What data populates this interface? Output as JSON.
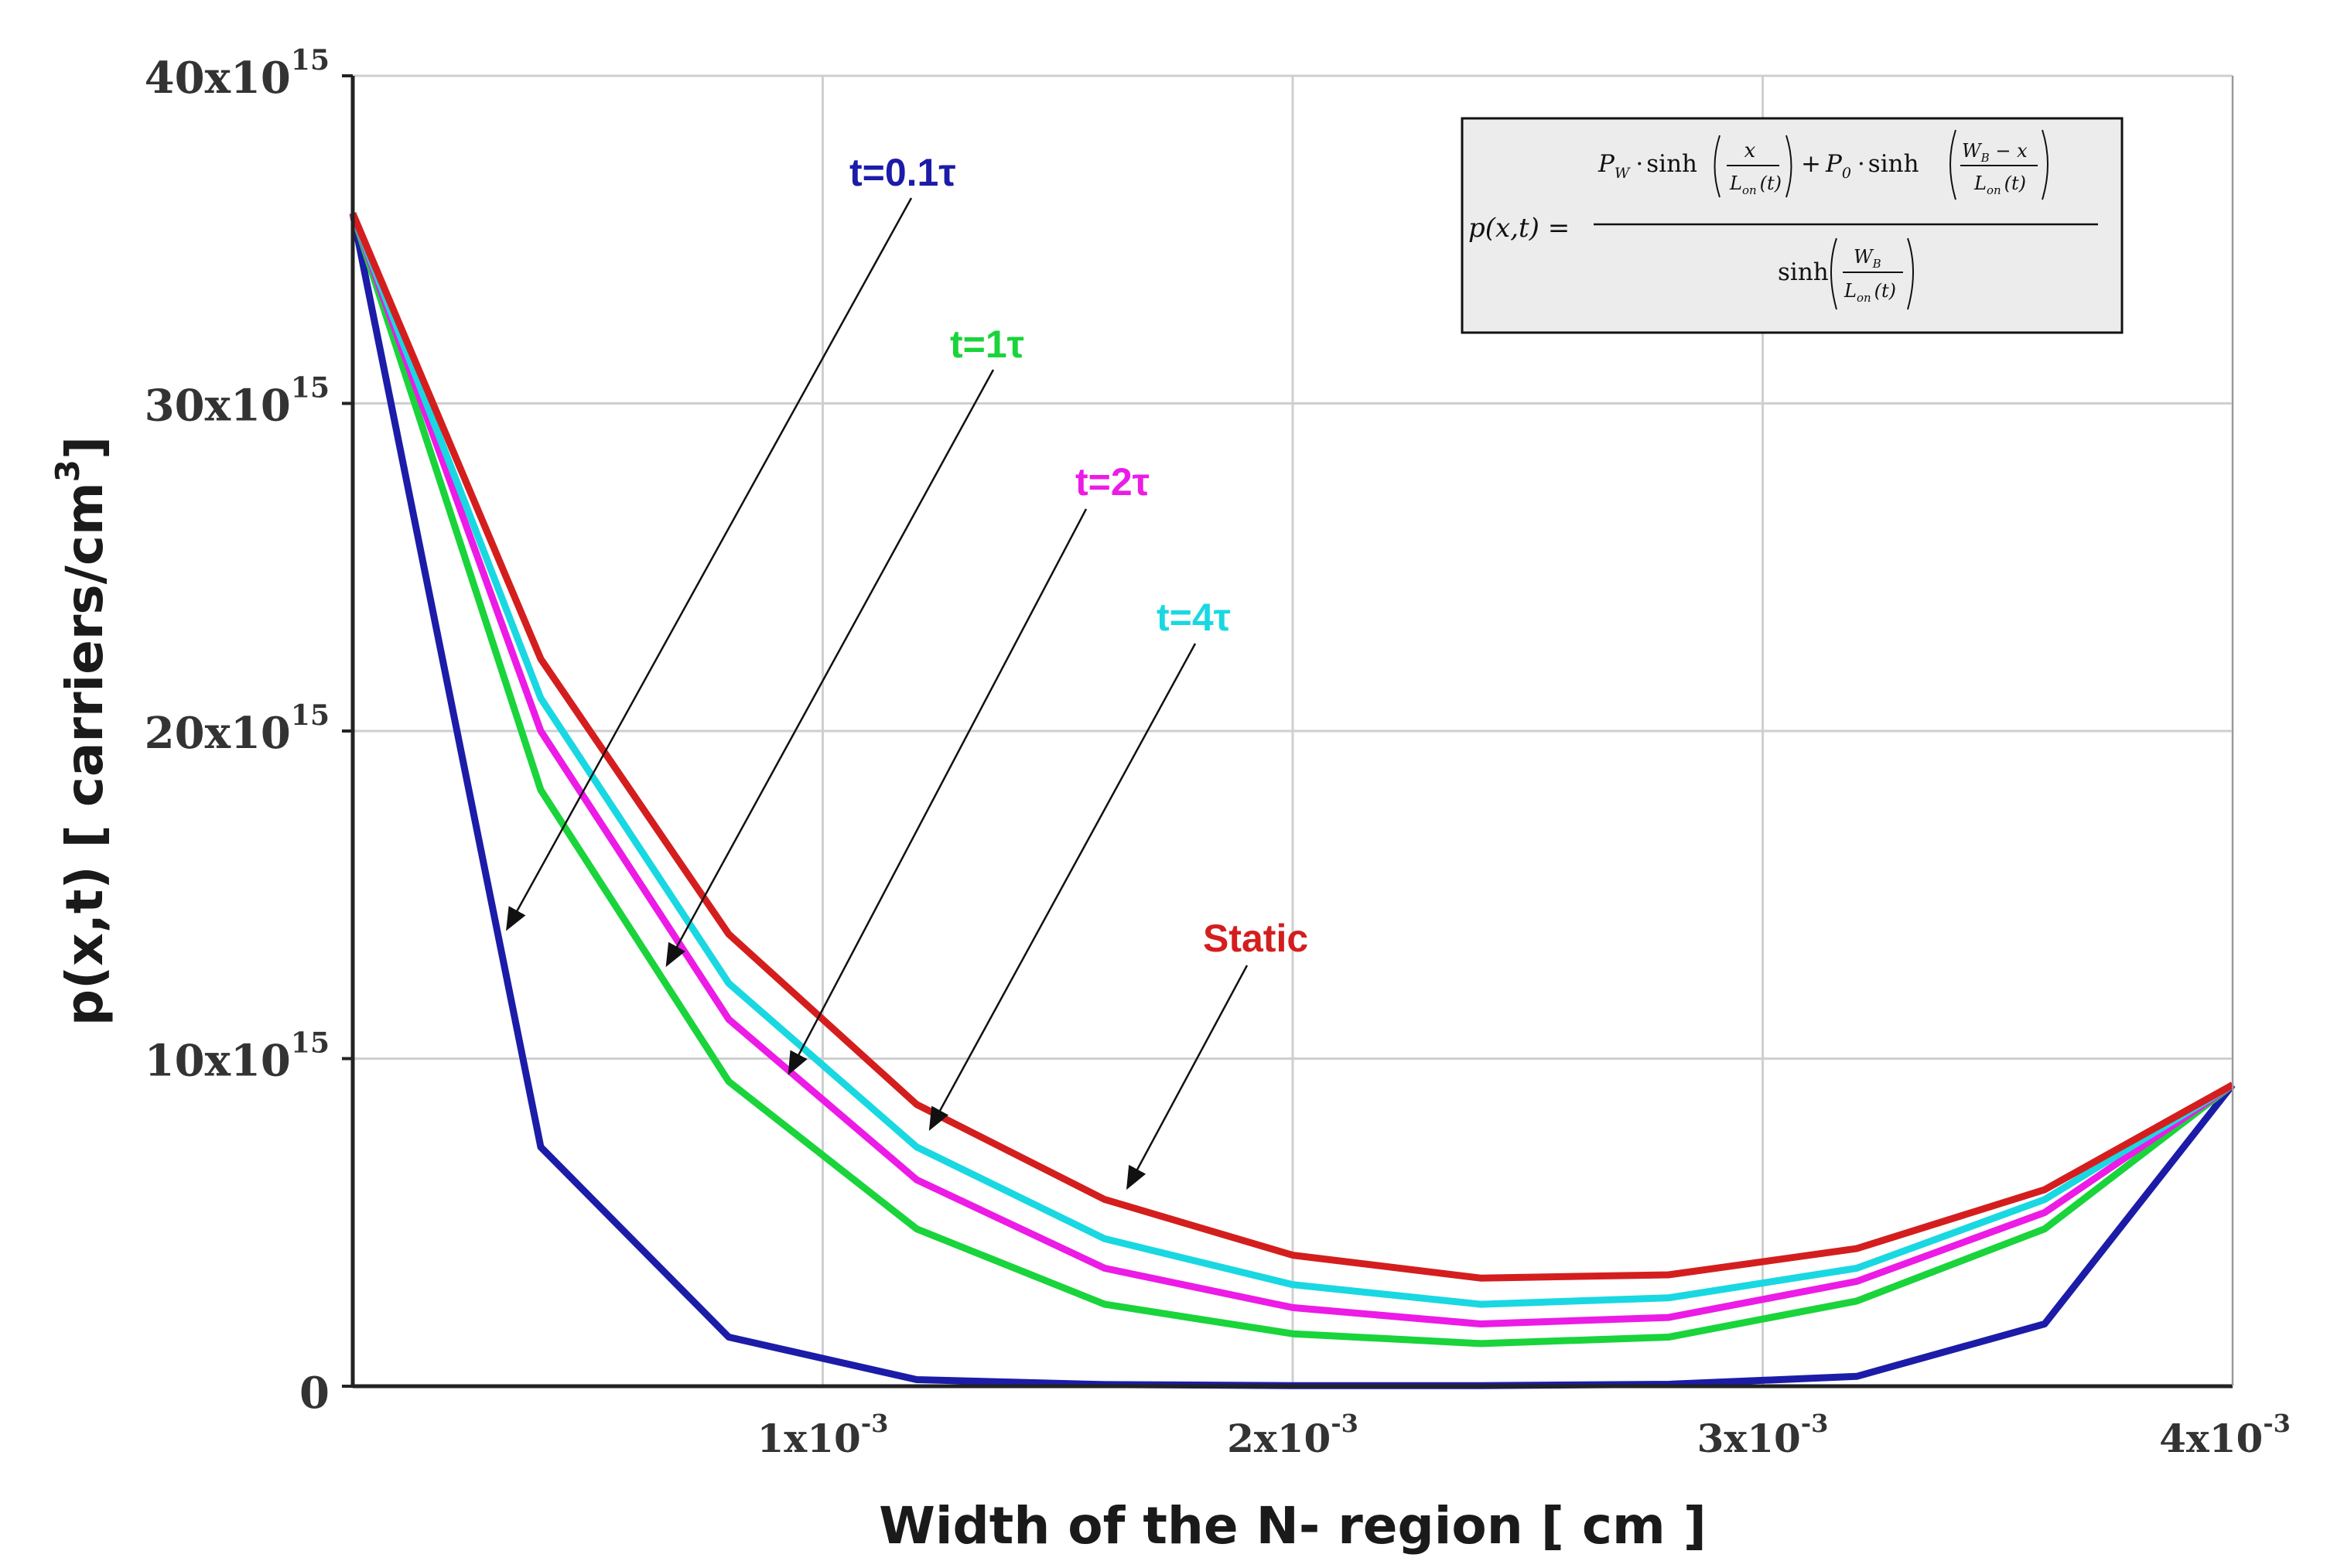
{
  "chart_data": {
    "type": "line",
    "title": "",
    "xlabel": "Width of the N- region [ cm ]",
    "ylabel": "p(x,t)  [ carriers/cm",
    "ylabel_sup": "3",
    "ylabel_close": "]",
    "xlim": [
      0,
      0.004
    ],
    "ylim": [
      0,
      4e+16
    ],
    "grid": true,
    "x_ticks": [
      {
        "value": 0.001,
        "base": "1x10",
        "exp": "-3"
      },
      {
        "value": 0.002,
        "base": "2x10",
        "exp": "-3"
      },
      {
        "value": 0.003,
        "base": "3x10",
        "exp": "-3"
      },
      {
        "value": 0.004,
        "base": "4x10",
        "exp": "-3"
      }
    ],
    "y_ticks": [
      {
        "value": 0,
        "base": "0",
        "exp": ""
      },
      {
        "value": 1e+16,
        "base": "10x10",
        "exp": "15"
      },
      {
        "value": 2e+16,
        "base": "20x10",
        "exp": "15"
      },
      {
        "value": 3e+16,
        "base": "30x10",
        "exp": "15"
      },
      {
        "value": 4e+16,
        "base": "40x10",
        "exp": "15"
      }
    ],
    "x": [
      0,
      0.0004,
      0.0008,
      0.0012,
      0.0016,
      0.002,
      0.0024,
      0.0028,
      0.0032,
      0.0036,
      0.004
    ],
    "series": [
      {
        "name": "t=0.1τ",
        "color": "#1c1ca8",
        "values": [
          3.58e+16,
          7300000000000000.0,
          1500000000000000.0,
          200000000000000.0,
          50000000000000.0,
          20000000000000.0,
          20000000000000.0,
          60000000000000.0,
          300000000000000.0,
          1900000000000000.0,
          9200000000000000.0
        ]
      },
      {
        "name": "t=1τ",
        "color": "#19d43a",
        "values": [
          3.58e+16,
          1.82e+16,
          9300000000000000.0,
          4800000000000000.0,
          2500000000000000.0,
          1600000000000000.0,
          1300000000000000.0,
          1500000000000000.0,
          2600000000000000.0,
          4800000000000000.0,
          9200000000000000.0
        ]
      },
      {
        "name": "t=2τ",
        "color": "#ec1be6",
        "values": [
          3.58e+16,
          2e+16,
          1.12e+16,
          6300000000000000.0,
          3600000000000000.0,
          2400000000000000.0,
          1900000000000000.0,
          2100000000000000.0,
          3200000000000000.0,
          5300000000000000.0,
          9200000000000000.0
        ]
      },
      {
        "name": "t=4τ",
        "color": "#19d8e2",
        "values": [
          3.58e+16,
          2.1e+16,
          1.23e+16,
          7300000000000000.0,
          4500000000000000.0,
          3100000000000000.0,
          2500000000000000.0,
          2700000000000000.0,
          3600000000000000.0,
          5700000000000000.0,
          9200000000000000.0
        ]
      },
      {
        "name": "Static",
        "color": "#d41e1e",
        "values": [
          3.58e+16,
          2.22e+16,
          1.38e+16,
          8600000000000000.0,
          5700000000000000.0,
          4000000000000000.0,
          3300000000000000.0,
          3400000000000000.0,
          4200000000000000.0,
          6000000000000000.0,
          9200000000000000.0
        ]
      }
    ],
    "annotations": [
      {
        "text": "t=0.1τ",
        "color": "#1c1ca8",
        "arrow_to": [
          0.00033,
          1.4e+16
        ]
      },
      {
        "text": "t=1τ",
        "color": "#19d43a",
        "arrow_to": [
          0.00067,
          1.29e+16
        ]
      },
      {
        "text": "t=2τ",
        "color": "#ec1be6",
        "arrow_to": [
          0.00093,
          9600000000000000.0
        ]
      },
      {
        "text": "t=4τ",
        "color": "#19d8e2",
        "arrow_to": [
          0.00123,
          7900000000000000.0
        ]
      },
      {
        "text": "Static",
        "color": "#d41e1e",
        "arrow_to": [
          0.00165,
          6100000000000000.0
        ]
      }
    ],
    "formula": {
      "lhs": "p(x,t) =",
      "t1_coef": "P",
      "t1_sub": "W",
      "sinh": "sinh",
      "dot": "·",
      "t1_num": "x",
      "L": "L",
      "L_sub": "on",
      "L_arg": "(t)",
      "plus": "+",
      "t2_coef": "P",
      "t2_sub": "0",
      "W": "W",
      "W_sub": "B",
      "minus_x": " − x"
    }
  }
}
